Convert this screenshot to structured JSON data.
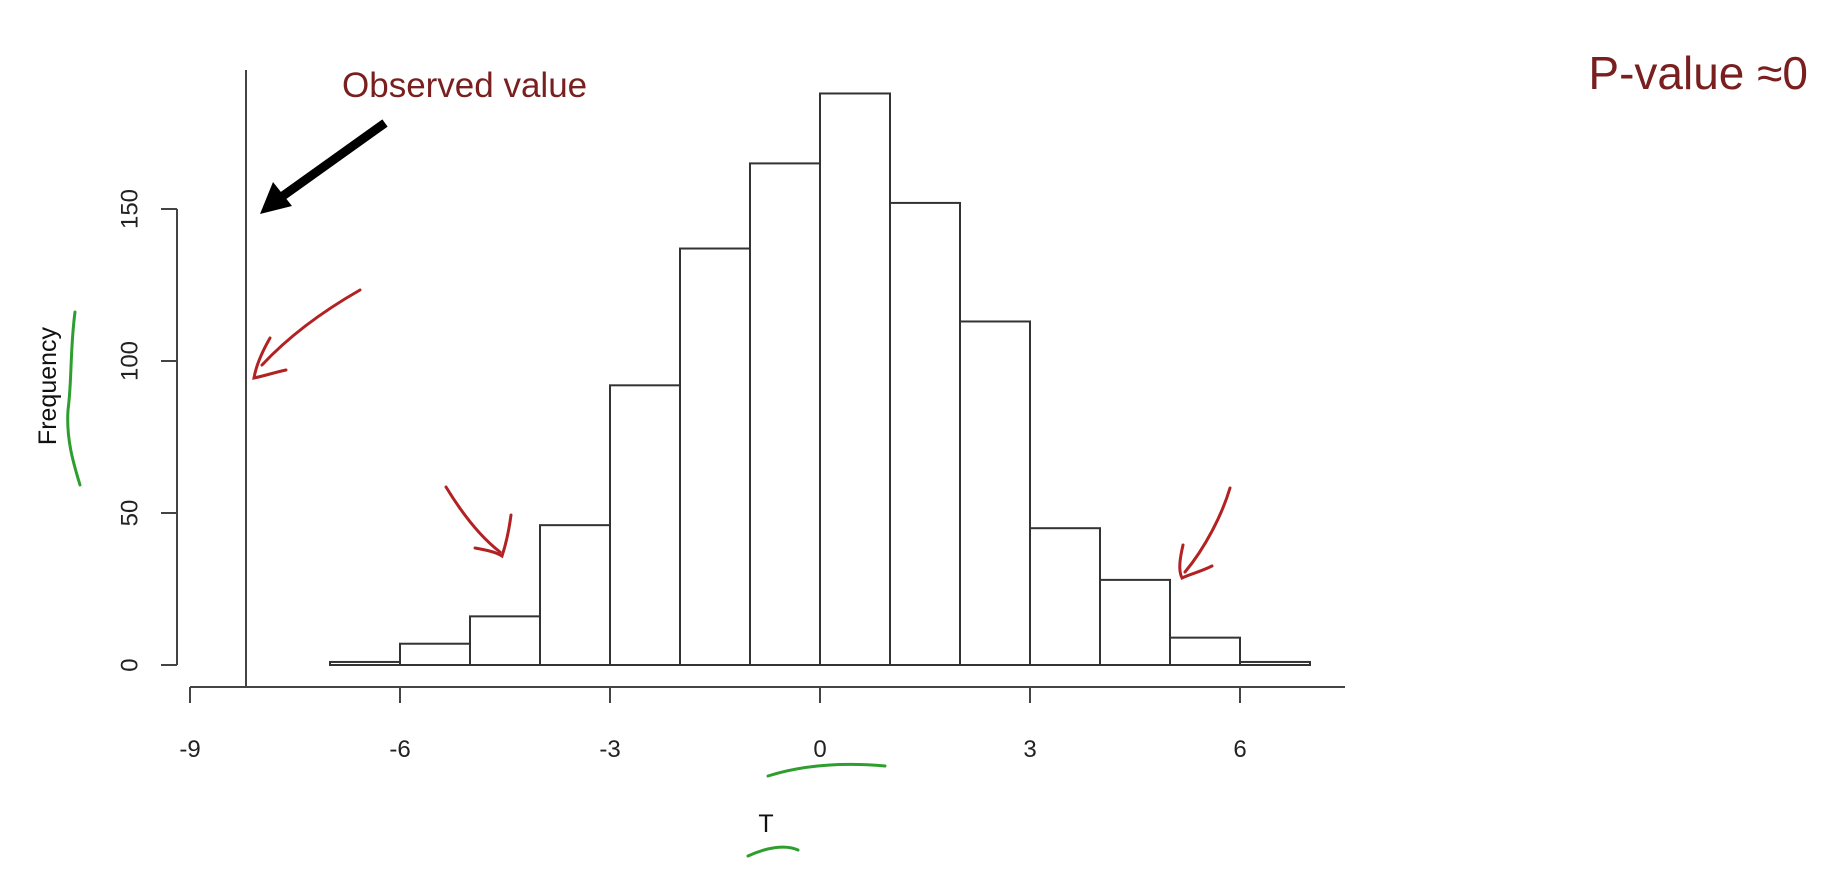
{
  "chart_data": {
    "type": "bar",
    "title": "",
    "xlabel": "T",
    "ylabel": "Frequency",
    "bin_edges": [
      -7,
      -6,
      -5,
      -4,
      -3,
      -2,
      -1,
      0,
      1,
      2,
      3,
      4,
      5,
      6,
      7
    ],
    "values": [
      1,
      7,
      16,
      46,
      92,
      137,
      165,
      188,
      152,
      113,
      45,
      28,
      9,
      1
    ],
    "xlim": [
      -9,
      7.5
    ],
    "ylim": [
      0,
      188
    ],
    "xticks": [
      "-9",
      "-6",
      "-3",
      "0",
      "3",
      "6"
    ],
    "yticks": [
      "0",
      "50",
      "100",
      "150"
    ],
    "observed_value": -8.2,
    "observed_label": "Observed value",
    "pvalue_label": "P-value ≈0",
    "grid": false,
    "legend": "none"
  },
  "colors": {
    "bar_fill": "#ffffff",
    "bar_stroke": "#333333",
    "axis": "#444444",
    "annotation_text": "#7a1f1f",
    "hand_arrow": "#b22222",
    "hand_underline": "#2e9e2e",
    "black_arrow": "#000000"
  }
}
